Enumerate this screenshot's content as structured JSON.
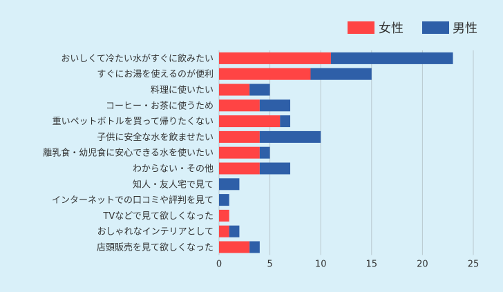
{
  "chart_data": {
    "type": "bar",
    "orientation": "horizontal",
    "stacked": true,
    "categories": [
      "おいしくて冷たい水がすぐに飲みたい",
      "すぐにお湯を使えるのが便利",
      "料理に使いたい",
      "コーヒー・お茶に使うため",
      "重いペットボトルを買って帰りたくない",
      "子供に安全な水を飲ませたい",
      "離乳食・幼児食に安心できる水を使いたい",
      "わからない・その他",
      "知人・友人宅で見て",
      "インターネットでの口コミや評判を見て",
      "TVなどで見て欲しくなった",
      "おしゃれなインテリアとして",
      "店頭販売を見て欲しくなった"
    ],
    "series": [
      {
        "name": "女性",
        "color": "#ff4444",
        "values": [
          11,
          9,
          3,
          4,
          6,
          4,
          4,
          4,
          0,
          0,
          1,
          1,
          3
        ]
      },
      {
        "name": "男性",
        "color": "#2e5fa8",
        "values": [
          12,
          6,
          2,
          3,
          1,
          6,
          1,
          3,
          2,
          1,
          0,
          1,
          1
        ]
      }
    ],
    "xlim": [
      0,
      25
    ],
    "xticks": [
      "0",
      "5",
      "10",
      "15",
      "20",
      "25"
    ],
    "grid": true,
    "legend": "top-right",
    "title": "",
    "xlabel": "",
    "ylabel": ""
  }
}
